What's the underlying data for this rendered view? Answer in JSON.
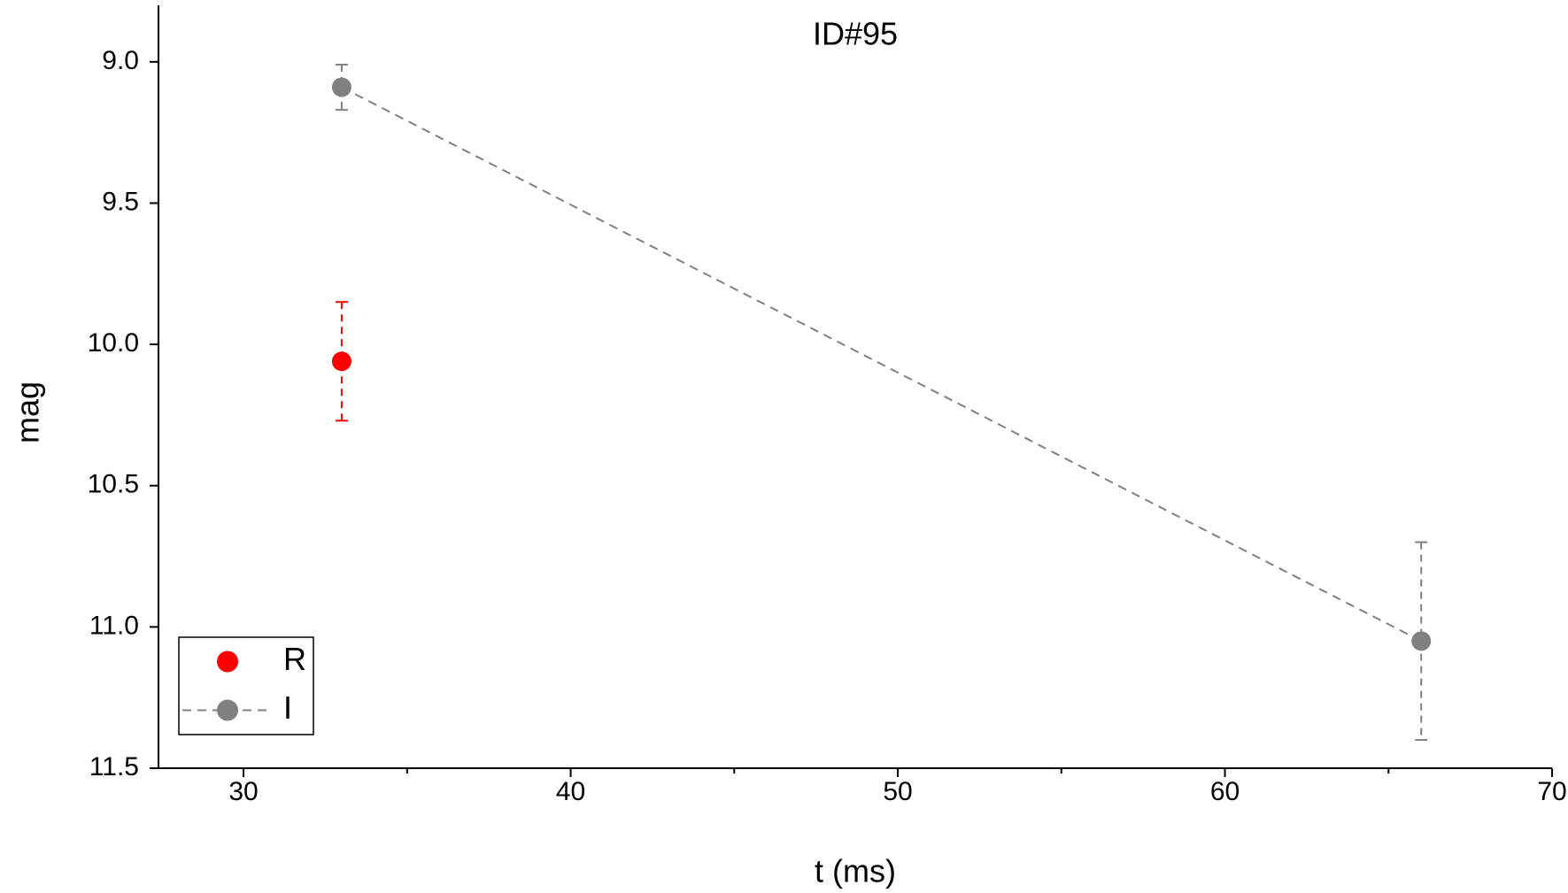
{
  "chart_data": {
    "type": "errorbar-line",
    "title": "ID#95",
    "xlabel": "t (ms)",
    "ylabel": "mag",
    "xlim": [
      27.4,
      70
    ],
    "xticks": [
      30,
      40,
      50,
      60,
      70
    ],
    "xminorticks": [
      35,
      45,
      55,
      65
    ],
    "ylim": [
      8.8,
      11.5
    ],
    "yticks": [
      {
        "value": 9,
        "label": "9.0"
      },
      9.5,
      {
        "value": 10,
        "label": "10.0"
      },
      10.5,
      {
        "value": 11,
        "label": "11.0"
      },
      11.5
    ],
    "y_reversed": true,
    "legend": "lower-left",
    "series": [
      {
        "name": "R",
        "color": "#ff0000",
        "line": false,
        "x": [
          33
        ],
        "values": [
          10.06
        ],
        "errors": [
          0.21
        ]
      },
      {
        "name": "I",
        "color": "#808080",
        "line": true,
        "x": [
          33,
          66
        ],
        "values": [
          9.09,
          11.05
        ],
        "errors": [
          0.08,
          0.35
        ]
      }
    ]
  }
}
